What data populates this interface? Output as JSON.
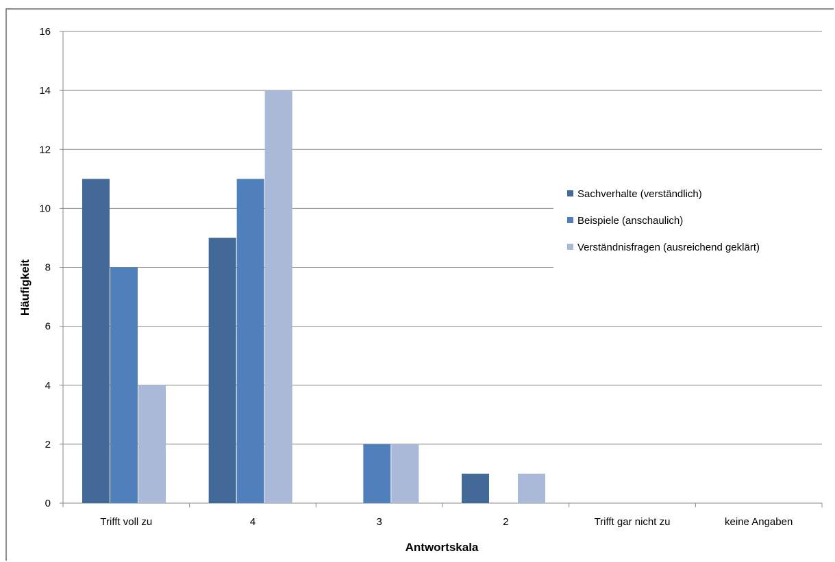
{
  "chart_data": {
    "type": "bar",
    "title": "",
    "xlabel": "Antwortskala",
    "ylabel": "Häufigkeit",
    "categories": [
      "Trifft voll zu",
      "4",
      "3",
      "2",
      "Trifft gar nicht zu",
      "keine Angaben"
    ],
    "series": [
      {
        "name": "Sachverhalte (verständlich)",
        "color": "#426998",
        "values": [
          11,
          9,
          0,
          1,
          0,
          0
        ]
      },
      {
        "name": "Beispiele (anschaulich)",
        "color": "#5080bc",
        "values": [
          8,
          11,
          2,
          0,
          0,
          0
        ]
      },
      {
        "name": "Verständnisfragen (ausreichend geklärt)",
        "color": "#aab9d7",
        "values": [
          4,
          14,
          2,
          1,
          0,
          0
        ]
      }
    ],
    "ylim": [
      0,
      16
    ],
    "yticks": [
      0,
      2,
      4,
      6,
      8,
      10,
      12,
      14,
      16
    ],
    "grid": true,
    "legend_position": "right"
  }
}
